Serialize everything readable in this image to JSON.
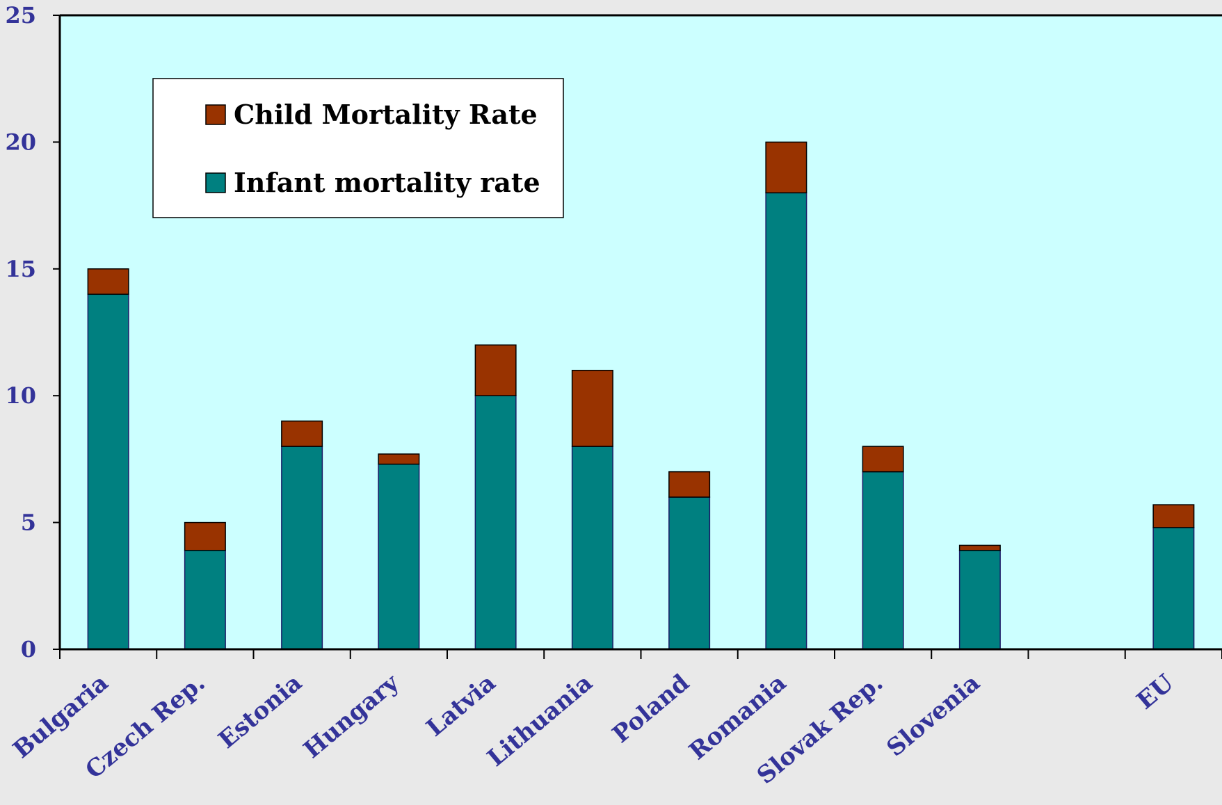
{
  "chart_data": {
    "type": "bar",
    "stacked": true,
    "categories": [
      "Bulgaria",
      "Czech Rep.",
      "Estonia",
      "Hungary",
      "Latvia",
      "Lithuania",
      "Poland",
      "Romania",
      "Slovak Rep.",
      "Slovenia",
      "",
      "EU"
    ],
    "series": [
      {
        "name": "Infant mortality rate",
        "values": [
          14,
          3.9,
          8,
          7.3,
          10,
          8,
          6,
          18,
          7,
          3.9,
          null,
          4.8
        ],
        "color": "#008080"
      },
      {
        "name": "Child Mortality Rate",
        "values": [
          1,
          1.1,
          1,
          0.4,
          2,
          3,
          1,
          2,
          1,
          0.2,
          null,
          0.9
        ],
        "color": "#993300"
      }
    ],
    "ylim": [
      0,
      25
    ],
    "yticks": [
      0,
      5,
      10,
      15,
      20,
      25
    ],
    "plot_background": "#ccffff",
    "legend": {
      "position": "top-left",
      "entries": [
        "Child Mortality Rate",
        "Infant mortality rate"
      ]
    }
  }
}
